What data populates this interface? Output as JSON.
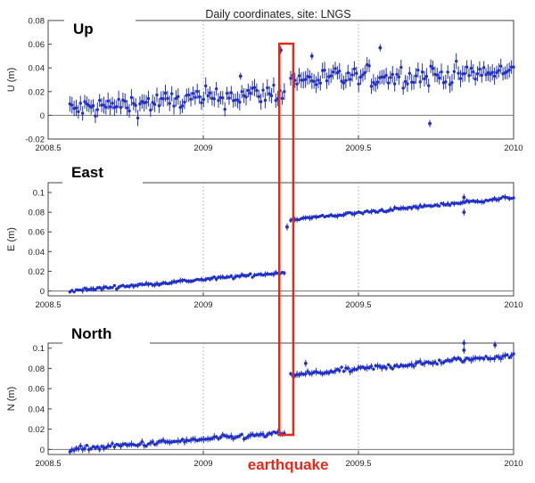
{
  "figure_title": "Daily coordinates, site:  LNGS",
  "annotation": {
    "label": "earthquake",
    "color": "#e02a1a",
    "x_start": 2009.245,
    "x_end": 2009.29
  },
  "colors": {
    "series": "#1f2fc8",
    "grid": "#999999",
    "axis": "#444444",
    "zero_line": "#777777"
  },
  "chart_data": [
    {
      "type": "scatter",
      "panel": "up",
      "label_box": "Up",
      "ylabel": "U (m)",
      "xlim": [
        2008.5,
        2010
      ],
      "ylim": [
        -0.02,
        0.08
      ],
      "xticks": [
        "2008.5",
        "2009",
        "2009.5",
        "2010"
      ],
      "yticks": [
        "-0.02",
        "0",
        "0.02",
        "0.04",
        "0.06",
        "0.08"
      ],
      "xgrid_at": [
        2009,
        2009.5
      ],
      "series": [
        {
          "x_start": 2008.57,
          "x_end": 2010.0,
          "step_at": 2009.27,
          "before": [
            0.005,
            0.02
          ],
          "after": [
            0.03,
            0.036
          ],
          "scatter": 0.009,
          "outliers": [
            [
              2009.25,
              0.055
            ],
            [
              2009.57,
              0.057
            ],
            [
              2009.73,
              -0.007
            ],
            [
              2009.12,
              0.033
            ],
            [
              2009.35,
              0.05
            ]
          ]
        }
      ]
    },
    {
      "type": "scatter",
      "panel": "east",
      "label_box": "East",
      "ylabel": "E (m)",
      "xlim": [
        2008.5,
        2010
      ],
      "ylim": [
        -0.005,
        0.11
      ],
      "xticks": [
        "2008.5",
        "2009",
        "2009.5",
        "2010"
      ],
      "yticks": [
        "0",
        "0.02",
        "0.04",
        "0.06",
        "0.08",
        "0.1"
      ],
      "xgrid_at": [
        2009,
        2009.5
      ],
      "series": [
        {
          "x_start": 2008.57,
          "x_end": 2010.0,
          "step_at": 2009.27,
          "before": [
            0.0,
            0.019
          ],
          "after": [
            0.072,
            0.095
          ],
          "scatter": 0.0015,
          "outliers": [
            [
              2009.84,
              0.08
            ],
            [
              2009.84,
              0.095
            ],
            [
              2009.27,
              0.065
            ]
          ]
        }
      ]
    },
    {
      "type": "scatter",
      "panel": "north",
      "label_box": "North",
      "ylabel": "N (m)",
      "xlim": [
        2008.5,
        2010
      ],
      "ylim": [
        -0.005,
        0.105
      ],
      "xticks": [
        "2008.5",
        "2009",
        "2009.5",
        "2010"
      ],
      "yticks": [
        "0",
        "0.02",
        "0.04",
        "0.06",
        "0.08",
        "0.1"
      ],
      "xgrid_at": [
        2009,
        2009.5
      ],
      "series": [
        {
          "x_start": 2008.57,
          "x_end": 2010.0,
          "step_at": 2009.27,
          "before": [
            0.0,
            0.016
          ],
          "after": [
            0.073,
            0.093
          ],
          "scatter": 0.0025,
          "outliers": [
            [
              2009.84,
              0.105
            ],
            [
              2009.84,
              0.098
            ],
            [
              2009.33,
              0.085
            ],
            [
              2009.94,
              0.103
            ]
          ]
        }
      ]
    }
  ]
}
